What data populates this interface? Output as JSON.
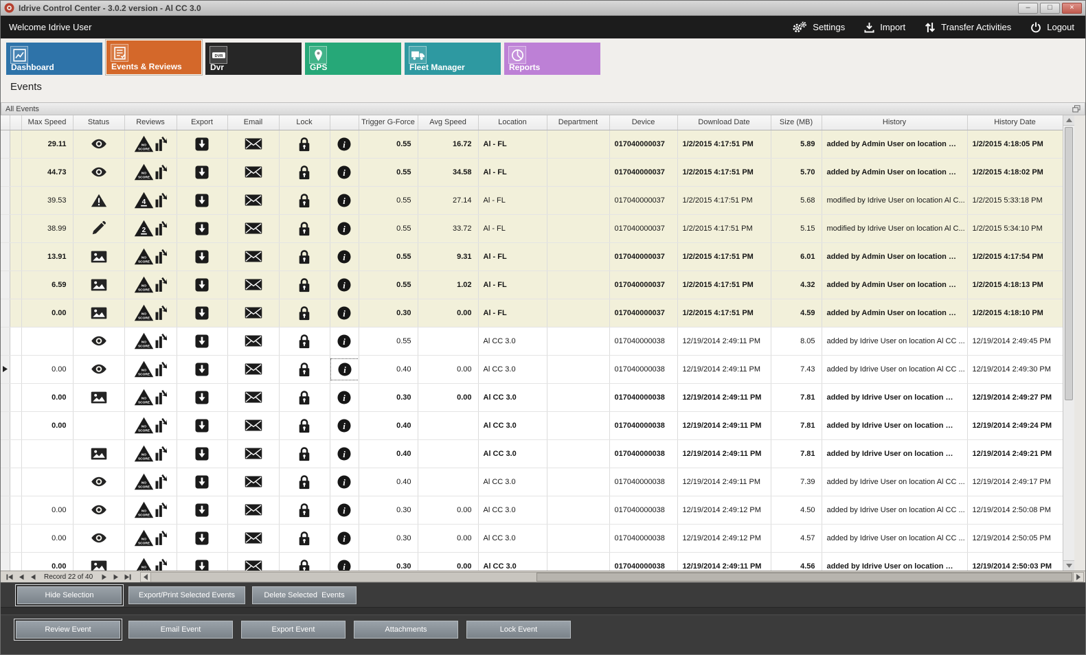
{
  "window": {
    "title": "Idrive Control Center - 3.0.2 version - Al CC 3.0",
    "minimize": "–",
    "maximize": "□",
    "close": "×"
  },
  "topbar": {
    "welcome": "Welcome Idrive User",
    "actions": [
      {
        "id": "settings",
        "label": "Settings",
        "icon": "gears"
      },
      {
        "id": "import",
        "label": "Import",
        "icon": "import"
      },
      {
        "id": "transfer-activities",
        "label": "Transfer Activities",
        "icon": "transfer"
      },
      {
        "id": "logout",
        "label": "Logout",
        "icon": "power"
      }
    ]
  },
  "tabs": [
    {
      "id": "dashboard",
      "label": "Dashboard",
      "color": "#2e73a9",
      "icon": "line-chart",
      "selected": false
    },
    {
      "id": "events-reviews",
      "label": "Events & Reviews",
      "color": "#d4682a",
      "icon": "checklist",
      "selected": true
    },
    {
      "id": "dvr",
      "label": "Dvr",
      "color": "#262626",
      "icon": "dvr",
      "selected": false
    },
    {
      "id": "gps",
      "label": "GPS",
      "color": "#26a878",
      "icon": "map-pin",
      "selected": false
    },
    {
      "id": "fleet-manager",
      "label": "Fleet Manager",
      "color": "#2e99a1",
      "icon": "truck",
      "selected": false
    },
    {
      "id": "reports",
      "label": "Reports",
      "color": "#bd80d6",
      "icon": "pie-chart",
      "selected": false
    }
  ],
  "page_title": "Events",
  "group_title": "All Events",
  "grid": {
    "columns": [
      "Max Speed",
      "Status",
      "Reviews",
      "Export",
      "Email",
      "Lock",
      "",
      "Trigger G-Force",
      "Avg Speed",
      "Location",
      "Department",
      "Device",
      "Download Date",
      "Size (MB)",
      "History",
      "History Date"
    ],
    "rows": [
      {
        "edge": "2",
        "max_speed": "29.11",
        "status": "eye",
        "review": "noscore",
        "trigger_g_force": "0.55",
        "avg_speed": "16.72",
        "location": "Al - FL",
        "department": "",
        "device": "017040000037",
        "download_date": "1/2/2015 4:17:51 PM",
        "size_mb": "5.89",
        "history": "added by Admin User on location …",
        "history_date": "1/2/2015 4:18:05 PM",
        "bold": true,
        "shaded": true,
        "current": false
      },
      {
        "edge": "6",
        "max_speed": "44.73",
        "status": "eye",
        "review": "noscore",
        "trigger_g_force": "0.55",
        "avg_speed": "34.58",
        "location": "Al - FL",
        "department": "",
        "device": "017040000037",
        "download_date": "1/2/2015 4:17:51 PM",
        "size_mb": "5.70",
        "history": "added by Admin User on location …",
        "history_date": "1/2/2015 4:18:02 PM",
        "bold": true,
        "shaded": true,
        "current": false
      },
      {
        "edge": "4",
        "max_speed": "39.53",
        "status": "warning",
        "review": "4",
        "trigger_g_force": "0.55",
        "avg_speed": "27.14",
        "location": "Al - FL",
        "department": "",
        "device": "017040000037",
        "download_date": "1/2/2015 4:17:51 PM",
        "size_mb": "5.68",
        "history": "modified by Idrive User on location Al C...",
        "history_date": "1/2/2015 5:33:18 PM",
        "bold": false,
        "shaded": true,
        "current": false
      },
      {
        "edge": "9",
        "max_speed": "38.99",
        "status": "pencil",
        "review": "2",
        "trigger_g_force": "0.55",
        "avg_speed": "33.72",
        "location": "Al - FL",
        "department": "",
        "device": "017040000037",
        "download_date": "1/2/2015 4:17:51 PM",
        "size_mb": "5.15",
        "history": "modified by Idrive User on location Al C...",
        "history_date": "1/2/2015 5:34:10 PM",
        "bold": false,
        "shaded": true,
        "current": false
      },
      {
        "edge": "6",
        "max_speed": "13.91",
        "status": "image",
        "review": "noscore",
        "trigger_g_force": "0.55",
        "avg_speed": "9.31",
        "location": "Al - FL",
        "department": "",
        "device": "017040000037",
        "download_date": "1/2/2015 4:17:51 PM",
        "size_mb": "6.01",
        "history": "added by Admin User on location …",
        "history_date": "1/2/2015 4:17:54 PM",
        "bold": true,
        "shaded": true,
        "current": false
      },
      {
        "edge": "0",
        "max_speed": "6.59",
        "status": "image",
        "review": "noscore",
        "trigger_g_force": "0.55",
        "avg_speed": "1.02",
        "location": "Al - FL",
        "department": "",
        "device": "017040000037",
        "download_date": "1/2/2015 4:17:51 PM",
        "size_mb": "4.32",
        "history": "added by Admin User on location …",
        "history_date": "1/2/2015 4:18:13 PM",
        "bold": true,
        "shaded": true,
        "current": false
      },
      {
        "edge": "0",
        "max_speed": "0.00",
        "status": "image",
        "review": "noscore",
        "trigger_g_force": "0.30",
        "avg_speed": "0.00",
        "location": "Al - FL",
        "department": "",
        "device": "017040000037",
        "download_date": "1/2/2015 4:17:51 PM",
        "size_mb": "4.59",
        "history": "added by Admin User on location …",
        "history_date": "1/2/2015 4:18:10 PM",
        "bold": true,
        "shaded": true,
        "current": false
      },
      {
        "edge": "6",
        "max_speed": "",
        "status": "eye",
        "review": "noscore",
        "trigger_g_force": "0.55",
        "avg_speed": "",
        "location": "Al CC 3.0",
        "department": "",
        "device": "017040000038",
        "download_date": "12/19/2014 2:49:11 PM",
        "size_mb": "8.05",
        "history": "added by Idrive User on location Al CC ...",
        "history_date": "12/19/2014 2:49:45 PM",
        "bold": false,
        "shaded": false,
        "current": false
      },
      {
        "edge": "7",
        "max_speed": "0.00",
        "status": "eye",
        "review": "noscore",
        "trigger_g_force": "0.40",
        "avg_speed": "0.00",
        "location": "Al CC 3.0",
        "department": "",
        "device": "017040000038",
        "download_date": "12/19/2014 2:49:11 PM",
        "size_mb": "7.43",
        "history": "added by Idrive User on location Al CC ...",
        "history_date": "12/19/2014 2:49:30 PM",
        "bold": false,
        "shaded": false,
        "current": true
      },
      {
        "edge": "7",
        "max_speed": "0.00",
        "status": "image",
        "review": "noscore",
        "trigger_g_force": "0.30",
        "avg_speed": "0.00",
        "location": "Al CC 3.0",
        "department": "",
        "device": "017040000038",
        "download_date": "12/19/2014 2:49:11 PM",
        "size_mb": "7.81",
        "history": "added by Idrive User on location …",
        "history_date": "12/19/2014 2:49:27 PM",
        "bold": true,
        "shaded": false,
        "current": false
      },
      {
        "edge": "6",
        "max_speed": "0.00",
        "status": "",
        "review": "noscore",
        "trigger_g_force": "0.40",
        "avg_speed": "",
        "location": "Al CC 3.0",
        "department": "",
        "device": "017040000038",
        "download_date": "12/19/2014 2:49:11 PM",
        "size_mb": "7.81",
        "history": "added by Idrive User on location …",
        "history_date": "12/19/2014 2:49:24 PM",
        "bold": true,
        "shaded": false,
        "current": false
      },
      {
        "edge": "8",
        "max_speed": "",
        "status": "image",
        "review": "noscore",
        "trigger_g_force": "0.40",
        "avg_speed": "",
        "location": "Al CC 3.0",
        "department": "",
        "device": "017040000038",
        "download_date": "12/19/2014 2:49:11 PM",
        "size_mb": "7.81",
        "history": "added by Idrive User on location …",
        "history_date": "12/19/2014 2:49:21 PM",
        "bold": true,
        "shaded": false,
        "current": false
      },
      {
        "edge": "6",
        "max_speed": "",
        "status": "eye",
        "review": "noscore",
        "trigger_g_force": "0.40",
        "avg_speed": "",
        "location": "Al CC 3.0",
        "department": "",
        "device": "017040000038",
        "download_date": "12/19/2014 2:49:11 PM",
        "size_mb": "7.39",
        "history": "added by Idrive User on location Al CC ...",
        "history_date": "12/19/2014 2:49:17 PM",
        "bold": false,
        "shaded": false,
        "current": false
      },
      {
        "edge": "0",
        "max_speed": "0.00",
        "status": "eye",
        "review": "noscore",
        "trigger_g_force": "0.30",
        "avg_speed": "0.00",
        "location": "Al CC 3.0",
        "department": "",
        "device": "017040000038",
        "download_date": "12/19/2014 2:49:12 PM",
        "size_mb": "4.50",
        "history": "added by Idrive User on location Al CC ...",
        "history_date": "12/19/2014 2:50:08 PM",
        "bold": false,
        "shaded": false,
        "current": false
      },
      {
        "edge": "8",
        "max_speed": "0.00",
        "status": "eye",
        "review": "noscore",
        "trigger_g_force": "0.30",
        "avg_speed": "0.00",
        "location": "Al CC 3.0",
        "department": "",
        "device": "017040000038",
        "download_date": "12/19/2014 2:49:12 PM",
        "size_mb": "4.57",
        "history": "added by Idrive User on location Al CC ...",
        "history_date": "12/19/2014 2:50:05 PM",
        "bold": false,
        "shaded": false,
        "current": false
      },
      {
        "edge": "8",
        "max_speed": "0.00",
        "status": "image",
        "review": "noscore",
        "trigger_g_force": "0.30",
        "avg_speed": "0.00",
        "location": "Al CC 3.0",
        "department": "",
        "device": "017040000038",
        "download_date": "12/19/2014 2:49:11 PM",
        "size_mb": "4.56",
        "history": "added by Idrive User on location …",
        "history_date": "12/19/2014 2:50:03 PM",
        "bold": true,
        "shaded": false,
        "current": false
      }
    ]
  },
  "navigator": {
    "record_text": "Record 22 of 40"
  },
  "selection_actions": [
    "Hide Selection",
    "Export/Print Selected Events",
    "Delete Selected  Events"
  ],
  "event_actions": [
    "Review Event",
    "Email Event",
    "Export Event",
    "Attachments",
    "Lock Event"
  ]
}
